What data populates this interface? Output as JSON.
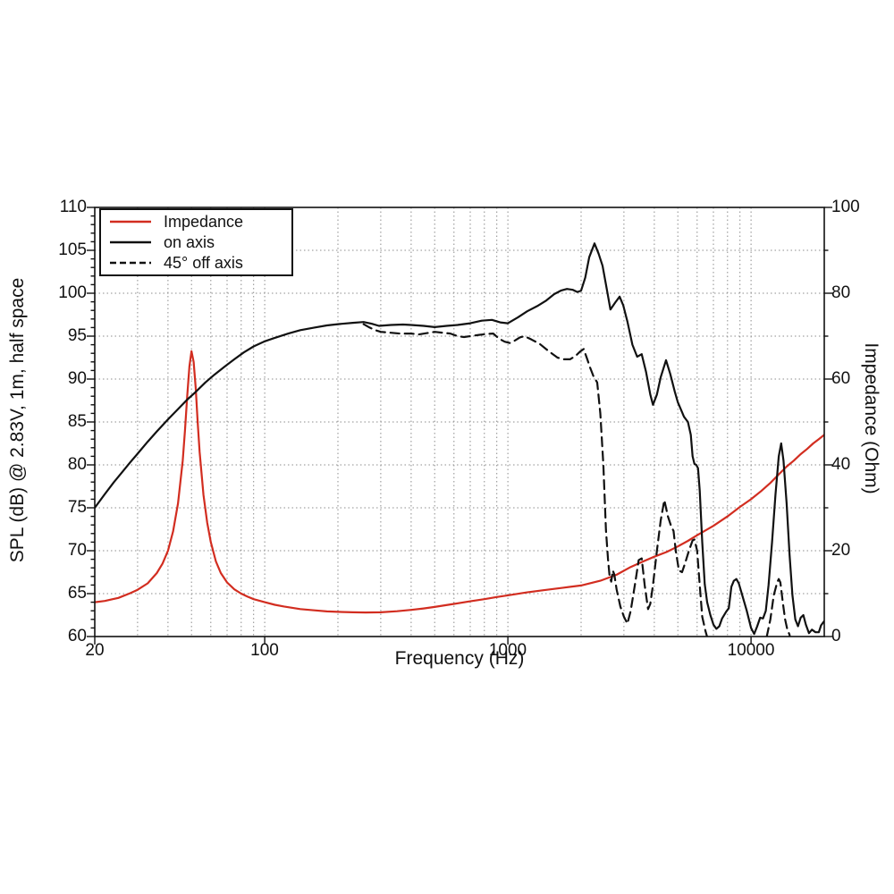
{
  "page": {
    "background": "#ffffff"
  },
  "chart_data": {
    "type": "line",
    "title": "",
    "xlabel": "Frequency (Hz)",
    "ylabel_left": "SPL (dB) @ 2.83V, 1m, half space",
    "ylabel_right": "Impedance (Ohm)",
    "x_scale": "log",
    "xlim": [
      20,
      20000
    ],
    "ylim_left": [
      60,
      110
    ],
    "ylim_right": [
      0,
      100
    ],
    "x_tick_labels": [
      "20",
      "100",
      "1000",
      "10000"
    ],
    "x_tick_values": [
      20,
      100,
      1000,
      10000
    ],
    "y_left_tick_values": [
      110,
      105,
      100,
      95,
      90,
      85,
      80,
      75,
      70,
      65,
      60
    ],
    "y_right_tick_values": [
      100,
      80,
      60,
      40,
      20,
      0
    ],
    "grid": "dotted",
    "legend_position": "top-left",
    "legend": [
      "Impedance",
      "on axis",
      "45° off axis"
    ],
    "colors": {
      "impedance": "#d22d20",
      "trace": "#111111",
      "grid": "#8c8c8c",
      "axis": "#111111"
    },
    "series": [
      {
        "id": "impedance",
        "name": "Impedance",
        "axis": "right",
        "unit": "Ohm",
        "color": "#d22d20",
        "style": "solid",
        "points": [
          [
            20,
            8
          ],
          [
            22,
            8.3
          ],
          [
            25,
            9
          ],
          [
            28,
            10.1
          ],
          [
            30,
            10.9
          ],
          [
            33,
            12.4
          ],
          [
            36,
            14.8
          ],
          [
            38,
            17
          ],
          [
            40,
            20
          ],
          [
            42,
            24.5
          ],
          [
            44,
            31
          ],
          [
            46,
            41
          ],
          [
            47,
            48
          ],
          [
            48,
            56
          ],
          [
            49,
            63
          ],
          [
            50,
            66.5
          ],
          [
            51,
            64
          ],
          [
            52,
            58
          ],
          [
            53,
            50
          ],
          [
            54,
            43
          ],
          [
            56,
            33
          ],
          [
            58,
            26.5
          ],
          [
            60,
            22
          ],
          [
            63,
            17.5
          ],
          [
            66,
            14.8
          ],
          [
            70,
            12.6
          ],
          [
            75,
            11
          ],
          [
            80,
            10
          ],
          [
            85,
            9.3
          ],
          [
            90,
            8.7
          ],
          [
            100,
            8
          ],
          [
            110,
            7.4
          ],
          [
            120,
            7
          ],
          [
            140,
            6.4
          ],
          [
            160,
            6.1
          ],
          [
            180,
            5.85
          ],
          [
            200,
            5.75
          ],
          [
            230,
            5.65
          ],
          [
            260,
            5.6
          ],
          [
            300,
            5.65
          ],
          [
            350,
            5.9
          ],
          [
            400,
            6.2
          ],
          [
            450,
            6.55
          ],
          [
            500,
            6.9
          ],
          [
            600,
            7.6
          ],
          [
            700,
            8.2
          ],
          [
            800,
            8.7
          ],
          [
            900,
            9.2
          ],
          [
            1000,
            9.6
          ],
          [
            1200,
            10.3
          ],
          [
            1400,
            10.8
          ],
          [
            1700,
            11.4
          ],
          [
            2000,
            11.9
          ],
          [
            2400,
            13
          ],
          [
            2800,
            14.4
          ],
          [
            3200,
            16.2
          ],
          [
            3600,
            17.5
          ],
          [
            4000,
            18.6
          ],
          [
            4500,
            19.7
          ],
          [
            5000,
            21
          ],
          [
            5500,
            22.3
          ],
          [
            6000,
            23.6
          ],
          [
            7000,
            25.8
          ],
          [
            8000,
            28
          ],
          [
            9000,
            30.2
          ],
          [
            10000,
            32
          ],
          [
            11000,
            33.9
          ],
          [
            12000,
            35.8
          ],
          [
            13000,
            37.8
          ],
          [
            14000,
            39.6
          ],
          [
            15000,
            41
          ],
          [
            16000,
            42.5
          ],
          [
            17000,
            43.7
          ],
          [
            18000,
            45
          ],
          [
            19000,
            46
          ],
          [
            20000,
            47
          ]
        ]
      },
      {
        "id": "on-axis",
        "name": "on axis",
        "axis": "left",
        "unit": "dB",
        "color": "#111111",
        "style": "solid",
        "points": [
          [
            20,
            75
          ],
          [
            22,
            76.6
          ],
          [
            24,
            78
          ],
          [
            26,
            79.2
          ],
          [
            28,
            80.3
          ],
          [
            30,
            81.3
          ],
          [
            33,
            82.7
          ],
          [
            36,
            83.9
          ],
          [
            40,
            85.3
          ],
          [
            44,
            86.5
          ],
          [
            48,
            87.6
          ],
          [
            52,
            88.5
          ],
          [
            57,
            89.6
          ],
          [
            62,
            90.5
          ],
          [
            68,
            91.4
          ],
          [
            75,
            92.3
          ],
          [
            82,
            93.1
          ],
          [
            90,
            93.8
          ],
          [
            100,
            94.4
          ],
          [
            110,
            94.8
          ],
          [
            125,
            95.3
          ],
          [
            140,
            95.7
          ],
          [
            160,
            96
          ],
          [
            180,
            96.25
          ],
          [
            200,
            96.4
          ],
          [
            230,
            96.55
          ],
          [
            255,
            96.65
          ],
          [
            275,
            96.45
          ],
          [
            295,
            96.2
          ],
          [
            330,
            96.3
          ],
          [
            370,
            96.35
          ],
          [
            400,
            96.3
          ],
          [
            450,
            96.2
          ],
          [
            500,
            96.05
          ],
          [
            560,
            96.2
          ],
          [
            620,
            96.3
          ],
          [
            700,
            96.5
          ],
          [
            780,
            96.8
          ],
          [
            860,
            96.9
          ],
          [
            930,
            96.6
          ],
          [
            1000,
            96.5
          ],
          [
            1100,
            97.2
          ],
          [
            1200,
            97.9
          ],
          [
            1320,
            98.5
          ],
          [
            1430,
            99.1
          ],
          [
            1550,
            99.9
          ],
          [
            1650,
            100.3
          ],
          [
            1750,
            100.5
          ],
          [
            1850,
            100.4
          ],
          [
            1930,
            100.15
          ],
          [
            2000,
            100.3
          ],
          [
            2080,
            101.8
          ],
          [
            2160,
            104.2
          ],
          [
            2270,
            105.8
          ],
          [
            2360,
            104.6
          ],
          [
            2450,
            103.2
          ],
          [
            2550,
            100.5
          ],
          [
            2640,
            98.1
          ],
          [
            2760,
            98.9
          ],
          [
            2880,
            99.6
          ],
          [
            2980,
            98.6
          ],
          [
            3100,
            96.7
          ],
          [
            3250,
            94
          ],
          [
            3400,
            92.6
          ],
          [
            3550,
            92.9
          ],
          [
            3700,
            90.8
          ],
          [
            3850,
            88.2
          ],
          [
            3950,
            87
          ],
          [
            4100,
            88.2
          ],
          [
            4250,
            90.2
          ],
          [
            4470,
            92.2
          ],
          [
            4650,
            90.6
          ],
          [
            4850,
            88.6
          ],
          [
            5000,
            87.3
          ],
          [
            5300,
            85.6
          ],
          [
            5500,
            85
          ],
          [
            5650,
            83.5
          ],
          [
            5750,
            81
          ],
          [
            5850,
            80.1
          ],
          [
            5950,
            80
          ],
          [
            6050,
            79.6
          ],
          [
            6150,
            77
          ],
          [
            6300,
            71
          ],
          [
            6450,
            66.1
          ],
          [
            6600,
            64
          ],
          [
            6800,
            62.5
          ],
          [
            7000,
            61.4
          ],
          [
            7200,
            60.9
          ],
          [
            7400,
            61.2
          ],
          [
            7600,
            62.1
          ],
          [
            7900,
            62.9
          ],
          [
            8100,
            63.3
          ],
          [
            8300,
            65.8
          ],
          [
            8500,
            66.5
          ],
          [
            8700,
            66.7
          ],
          [
            8900,
            66.2
          ],
          [
            9200,
            64.8
          ],
          [
            9600,
            63
          ],
          [
            10000,
            61
          ],
          [
            10300,
            60.3
          ],
          [
            10600,
            61.2
          ],
          [
            10900,
            62.2
          ],
          [
            11200,
            62.1
          ],
          [
            11500,
            63
          ],
          [
            11800,
            66
          ],
          [
            12200,
            71
          ],
          [
            12600,
            76.5
          ],
          [
            13000,
            81
          ],
          [
            13300,
            82.5
          ],
          [
            13600,
            80.5
          ],
          [
            14000,
            75.5
          ],
          [
            14400,
            69.5
          ],
          [
            14800,
            64.8
          ],
          [
            15200,
            62
          ],
          [
            15600,
            61.2
          ],
          [
            16000,
            62.2
          ],
          [
            16400,
            62.5
          ],
          [
            16800,
            61.4
          ],
          [
            17300,
            60.4
          ],
          [
            17800,
            60.8
          ],
          [
            18400,
            60.5
          ],
          [
            19000,
            60.5
          ],
          [
            19400,
            61.3
          ],
          [
            20000,
            61.8
          ]
        ]
      },
      {
        "id": "off-axis-45",
        "name": "45° off axis",
        "axis": "left",
        "unit": "dB",
        "color": "#111111",
        "style": "dashed",
        "points": [
          [
            255,
            96.4
          ],
          [
            270,
            96
          ],
          [
            285,
            95.7
          ],
          [
            300,
            95.5
          ],
          [
            330,
            95.4
          ],
          [
            360,
            95.3
          ],
          [
            400,
            95.3
          ],
          [
            430,
            95.2
          ],
          [
            465,
            95.35
          ],
          [
            500,
            95.5
          ],
          [
            540,
            95.4
          ],
          [
            580,
            95.3
          ],
          [
            620,
            95
          ],
          [
            660,
            94.9
          ],
          [
            700,
            95
          ],
          [
            760,
            95.15
          ],
          [
            820,
            95.25
          ],
          [
            870,
            95.3
          ],
          [
            920,
            94.7
          ],
          [
            970,
            94.35
          ],
          [
            1020,
            94.2
          ],
          [
            1070,
            94.5
          ],
          [
            1120,
            94.85
          ],
          [
            1170,
            95
          ],
          [
            1250,
            94.6
          ],
          [
            1350,
            94.1
          ],
          [
            1480,
            93.2
          ],
          [
            1600,
            92.5
          ],
          [
            1700,
            92.3
          ],
          [
            1800,
            92.3
          ],
          [
            1900,
            92.7
          ],
          [
            1980,
            93.2
          ],
          [
            2050,
            93.5
          ],
          [
            2120,
            92.3
          ],
          [
            2180,
            91.3
          ],
          [
            2250,
            90.3
          ],
          [
            2330,
            89.6
          ],
          [
            2400,
            86
          ],
          [
            2470,
            80
          ],
          [
            2530,
            72.4
          ],
          [
            2580,
            69
          ],
          [
            2620,
            67
          ],
          [
            2660,
            66.4
          ],
          [
            2700,
            67.7
          ],
          [
            2740,
            67.2
          ],
          [
            2800,
            65.5
          ],
          [
            2900,
            63.5
          ],
          [
            3000,
            62.3
          ],
          [
            3100,
            61.5
          ],
          [
            3200,
            63
          ],
          [
            3350,
            66.5
          ],
          [
            3450,
            68.9
          ],
          [
            3550,
            69.1
          ],
          [
            3650,
            66
          ],
          [
            3770,
            63.2
          ],
          [
            3850,
            63.8
          ],
          [
            3950,
            66
          ],
          [
            4100,
            70
          ],
          [
            4250,
            73.5
          ],
          [
            4400,
            75.9
          ],
          [
            4550,
            74
          ],
          [
            4700,
            72.8
          ],
          [
            4800,
            72.3
          ],
          [
            4900,
            70
          ],
          [
            5050,
            67.7
          ],
          [
            5200,
            67.5
          ],
          [
            5350,
            68.5
          ],
          [
            5550,
            70
          ],
          [
            5750,
            71.2
          ],
          [
            5850,
            71.3
          ],
          [
            6000,
            70
          ],
          [
            6150,
            66
          ],
          [
            6300,
            62.3
          ],
          [
            6500,
            60.6
          ],
          [
            6700,
            59.3
          ],
          [
            6900,
            57.5
          ],
          [
            11000,
            57.5
          ],
          [
            11300,
            58.5
          ],
          [
            11600,
            60
          ],
          [
            12000,
            62
          ],
          [
            12400,
            64.8
          ],
          [
            12800,
            66.3
          ],
          [
            13000,
            66.7
          ],
          [
            13200,
            66.3
          ],
          [
            13500,
            64
          ],
          [
            13800,
            62
          ],
          [
            14100,
            60.8
          ],
          [
            14400,
            60.2
          ],
          [
            14600,
            58.5
          ],
          [
            14800,
            57
          ]
        ]
      }
    ]
  }
}
